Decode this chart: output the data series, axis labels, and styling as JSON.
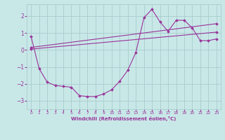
{
  "xlabel": "Windchill (Refroidissement éolien,°C)",
  "xlim": [
    -0.5,
    23.5
  ],
  "ylim": [
    -3.5,
    2.7
  ],
  "yticks": [
    -3,
    -2,
    -1,
    0,
    1,
    2
  ],
  "xticks": [
    0,
    1,
    2,
    3,
    4,
    5,
    6,
    7,
    8,
    9,
    10,
    11,
    12,
    13,
    14,
    15,
    16,
    17,
    18,
    19,
    20,
    21,
    22,
    23
  ],
  "bg_color": "#c8e8e8",
  "line_color": "#993399",
  "grid_color": "#aacccc",
  "line1_x": [
    0,
    1,
    2,
    3,
    4,
    5,
    6,
    7,
    8,
    9,
    10,
    11,
    12,
    13,
    14,
    15,
    16,
    17,
    18,
    19,
    20,
    21,
    22,
    23
  ],
  "line1_y": [
    0.8,
    -1.1,
    -1.9,
    -2.1,
    -2.15,
    -2.2,
    -2.7,
    -2.75,
    -2.75,
    -2.6,
    -2.35,
    -1.85,
    -1.2,
    -0.15,
    1.9,
    2.4,
    1.65,
    1.1,
    1.75,
    1.75,
    1.3,
    0.55,
    0.55,
    0.65
  ],
  "line2_x": [
    0,
    23
  ],
  "line2_y": [
    0.15,
    1.55
  ],
  "line3_x": [
    0,
    23
  ],
  "line3_y": [
    0.05,
    1.05
  ]
}
